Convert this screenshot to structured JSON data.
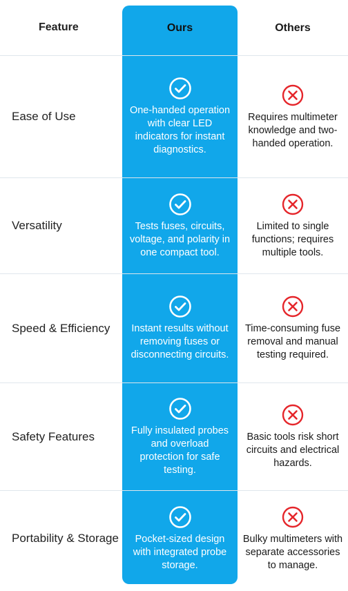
{
  "header": {
    "feature": "Feature",
    "ours": "Ours",
    "others": "Others"
  },
  "colors": {
    "accent": "#11a7ea",
    "cross": "#e5262b",
    "check": "#ffffff"
  },
  "rows": [
    {
      "feature": "Ease of Use",
      "ours": "One-handed operation with clear LED indicators for instant diagnostics.",
      "others": "Requires multimeter knowledge and two-handed operation."
    },
    {
      "feature": "Versatility",
      "ours": "Tests fuses, circuits, voltage, and polarity in one compact tool.",
      "others": "Limited to single functions; requires multiple tools."
    },
    {
      "feature": "Speed & Efficiency",
      "ours": "Instant results without removing fuses or disconnecting circuits.",
      "others": "Time-consuming fuse removal and manual testing required."
    },
    {
      "feature": "Safety Features",
      "ours": "Fully insulated probes and overload protection for safe testing.",
      "others": "Basic tools risk short circuits and electrical hazards."
    },
    {
      "feature": "Portability & Storage",
      "ours": "Pocket-sized design with integrated probe storage.",
      "others": "Bulky multimeters with separate accessories to manage."
    }
  ]
}
